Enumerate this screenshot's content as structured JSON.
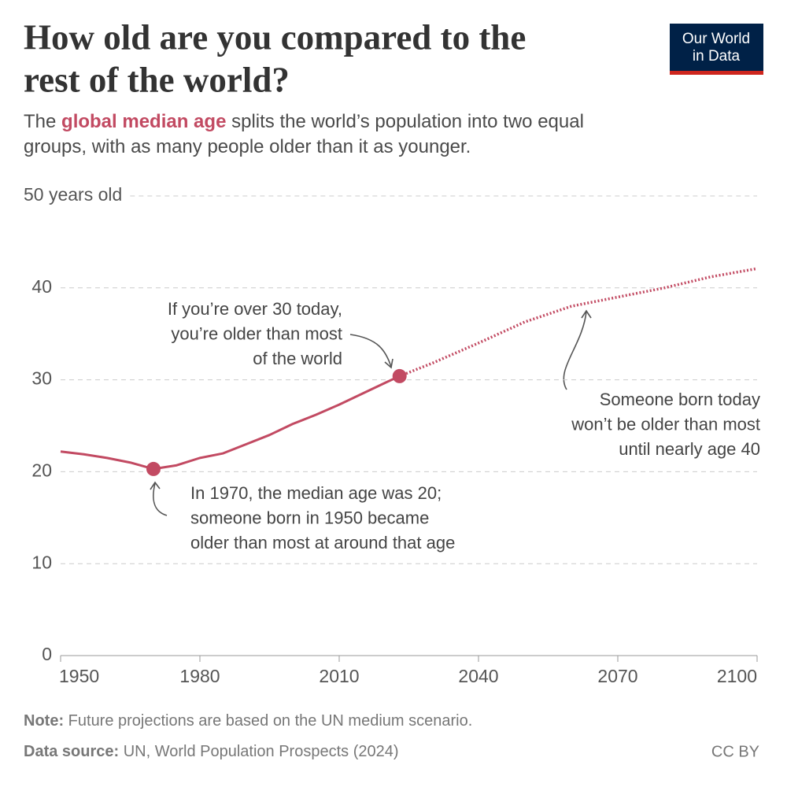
{
  "header": {
    "title": [
      "How old are you compared to the",
      "rest of the world?"
    ],
    "subtitle": [
      "The ",
      "global median age",
      " splits the world’s population into two equal groups, with as many people older than it as younger."
    ],
    "logo": [
      "Our World",
      "in Data"
    ]
  },
  "chart_data": {
    "type": "line",
    "xlim": [
      1950,
      2100
    ],
    "xticks": [
      1950,
      1980,
      2010,
      2040,
      2070,
      2100
    ],
    "ylim": [
      0,
      50
    ],
    "yticks": [
      0,
      10,
      20,
      30,
      40,
      {
        "value": 50,
        "label": "50 years old"
      }
    ],
    "grid": true,
    "color": "#c24a62",
    "series": [
      {
        "style": "solid",
        "x": [
          1950,
          1955,
          1960,
          1965,
          1970,
          1975,
          1980,
          1985,
          1990,
          1995,
          2000,
          2005,
          2010,
          2015,
          2020,
          2023
        ],
        "values": [
          22.2,
          21.9,
          21.5,
          21.0,
          20.3,
          20.7,
          21.5,
          22.0,
          23.0,
          24.0,
          25.2,
          26.2,
          27.3,
          28.5,
          29.7,
          30.4
        ]
      },
      {
        "style": "dotted",
        "x": [
          2023,
          2030,
          2040,
          2050,
          2060,
          2070,
          2080,
          2090,
          2100
        ],
        "values": [
          30.4,
          31.8,
          34.0,
          36.3,
          38.0,
          39.0,
          40.0,
          41.2,
          42.1
        ]
      }
    ],
    "highlights": {
      "x": [
        1970,
        2023
      ],
      "values": [
        20.3,
        30.4
      ]
    },
    "annotations": [
      [
        "If you’re over 30 today,",
        "you’re older than most",
        "of the world"
      ],
      [
        "In 1970, the median age was 20;",
        "someone born in 1950 became",
        "older than most at around that age"
      ],
      [
        "Someone born today",
        "won’t be older than most",
        "until nearly age 40"
      ]
    ]
  },
  "footer": {
    "note": [
      "Note:",
      " Future projections are based on the UN medium scenario."
    ],
    "source": [
      "Data source:",
      " UN, World Population Prospects (2024)"
    ],
    "license": "CC BY"
  }
}
